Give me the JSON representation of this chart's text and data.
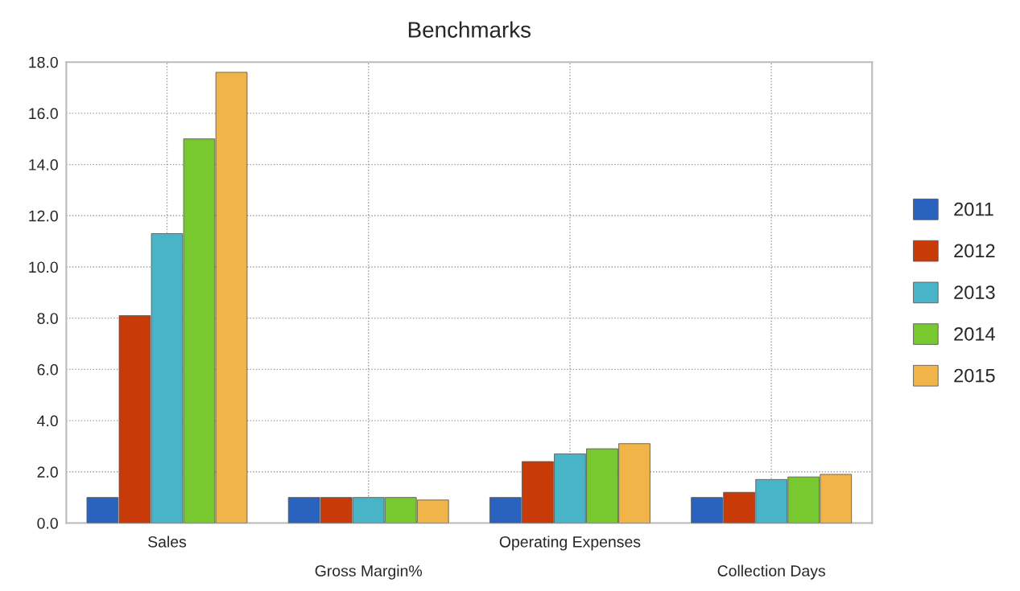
{
  "chart_data": {
    "type": "bar",
    "title": "Benchmarks",
    "categories": [
      "Sales",
      "Gross Margin%",
      "Operating Expenses",
      "Collection Days"
    ],
    "series": [
      {
        "name": "2011",
        "color": "#2a62c0",
        "values": [
          1.0,
          1.0,
          1.0,
          1.0
        ]
      },
      {
        "name": "2012",
        "color": "#c83a08",
        "values": [
          8.1,
          1.0,
          2.4,
          1.2
        ]
      },
      {
        "name": "2013",
        "color": "#48b4c8",
        "values": [
          11.3,
          1.0,
          2.7,
          1.7
        ]
      },
      {
        "name": "2014",
        "color": "#78c830",
        "values": [
          15.0,
          1.0,
          2.9,
          1.8
        ]
      },
      {
        "name": "2015",
        "color": "#f0b448",
        "values": [
          17.6,
          0.9,
          3.1,
          1.9
        ]
      }
    ],
    "ylim": [
      0,
      18
    ],
    "yticks": [
      {
        "value": 0,
        "label": "0.0"
      },
      {
        "value": 2,
        "label": "2.0"
      },
      {
        "value": 4,
        "label": "4.0"
      },
      {
        "value": 6,
        "label": "6.0"
      },
      {
        "value": 8,
        "label": "8.0"
      },
      {
        "value": 10,
        "label": "10.0"
      },
      {
        "value": 12,
        "label": "12.0"
      },
      {
        "value": 14,
        "label": "14.0"
      },
      {
        "value": 16,
        "label": "16.0"
      },
      {
        "value": 18,
        "label": "18.0"
      }
    ],
    "grid": true,
    "legend": "right"
  }
}
